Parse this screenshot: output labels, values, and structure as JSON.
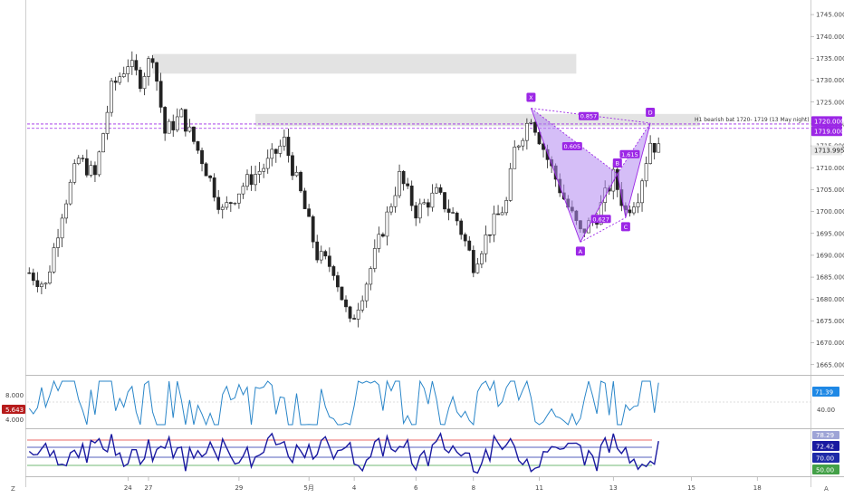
{
  "chart": {
    "price_axis_labels": [
      "1745.000",
      "1740.000",
      "1735.000",
      "1730.000",
      "1725.000",
      "1720.000",
      "1715.000",
      "1710.000",
      "1705.000",
      "1700.000",
      "1695.000",
      "1690.000",
      "1685.000",
      "1680.000",
      "1675.000",
      "1670.000",
      "1665.000"
    ],
    "price_axis_values": [
      1745,
      1740,
      1735,
      1730,
      1725,
      1720,
      1715,
      1710,
      1705,
      1700,
      1695,
      1690,
      1685,
      1680,
      1675,
      1670,
      1665
    ],
    "price_range": [
      1663.5,
      1747.5
    ],
    "date_labels": [
      "24",
      "27",
      "29",
      "5月",
      "4",
      "6",
      "8",
      "11",
      "13",
      "15",
      "18"
    ],
    "date_label_slots": [
      24,
      29,
      51,
      68,
      79,
      94,
      108,
      124,
      142,
      161,
      177
    ],
    "slot_count": 190,
    "price_tags": [
      {
        "label": "1720.000",
        "value": 1720.0,
        "color": "#9c27e6"
      },
      {
        "label": "1719.000",
        "value": 1719.0,
        "color": "#9c27e6"
      },
      {
        "label": "1713.995",
        "value": 1713.995,
        "color": "#e8e8e8"
      }
    ],
    "annotation": "H1 bearish bat 1720- 1719 (13 May night)",
    "zones": [
      {
        "from_slot": 30,
        "to_slot": 133,
        "low": 1731.5,
        "high": 1736.0
      },
      {
        "from_slot": 55,
        "to_slot": 163,
        "low": 1719.5,
        "high": 1722.3
      }
    ],
    "dashed_levels": [
      1720.0,
      1719.0
    ],
    "pattern": {
      "points": [
        {
          "label": "X",
          "slot": 122,
          "price": 1723.6
        },
        {
          "label": "A",
          "slot": 134,
          "price": 1693.0
        },
        {
          "label": "B",
          "slot": 143,
          "price": 1708.6
        },
        {
          "label": "C",
          "slot": 145,
          "price": 1698.6
        },
        {
          "label": "D",
          "slot": 151,
          "price": 1720.2
        }
      ],
      "ratios": [
        {
          "label": "0.857",
          "slot": 136,
          "price": 1721.7
        },
        {
          "label": "0.605",
          "slot": 132,
          "price": 1714.8
        },
        {
          "label": "1.615",
          "slot": 146,
          "price": 1713.0
        },
        {
          "label": "0.627",
          "slot": 139,
          "price": 1698.2
        }
      ],
      "color": "#9c27e6",
      "fill": "#b388f0"
    },
    "candle_seed": 7
  },
  "indicator1": {
    "left_labels": [
      "8.000",
      "4.000"
    ],
    "left_tag": "5.643",
    "right_tags": [
      "71.39"
    ],
    "right_level": "40.00"
  },
  "indicator2": {
    "right_tags": [
      "78.29",
      "72.42",
      "70.00",
      "50.00"
    ]
  },
  "controls": {
    "zoom_label": "Z",
    "auto_label": "A"
  },
  "colors": {
    "candle": "#222222",
    "grid_zone": "#d9d9d9",
    "dashed_line": "#9c27e6",
    "osc_line": "#2a86c9",
    "osc2_line": "#1a1aa0",
    "red_level": "#e53935",
    "green_level": "#43a047",
    "blue_level": "#1e2aa8",
    "price_tag_bg": "#1e88e5",
    "left_tag_bg": "#b71c1c"
  }
}
